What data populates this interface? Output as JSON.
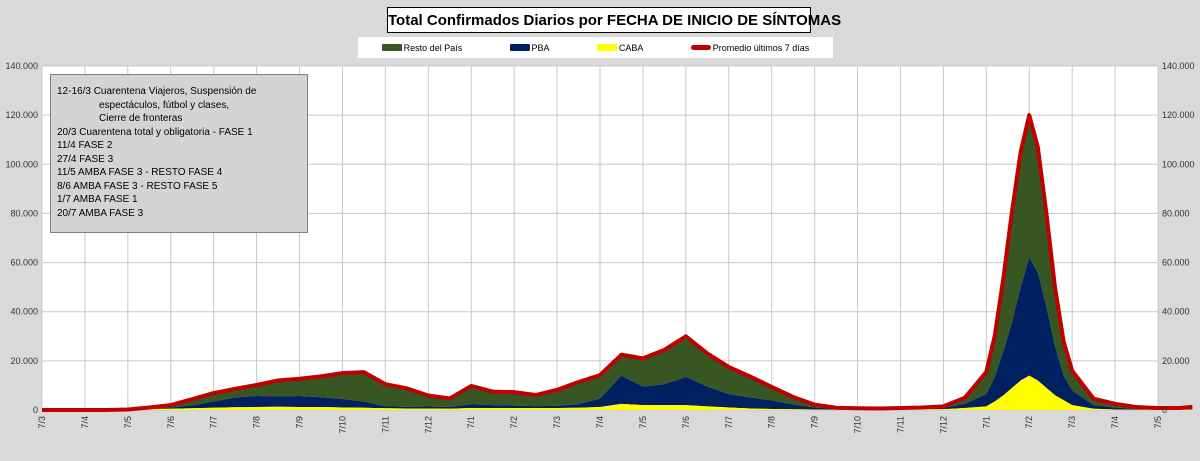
{
  "chart_data": {
    "type": "area",
    "title": "Total  Confirmados  Diarios  por FECHA DE INICIO DE SÍNTOMAS",
    "xlabel": "",
    "ylabel": "",
    "ylim": [
      0,
      140000
    ],
    "yticks": [
      "0",
      "20.000",
      "40.000",
      "60.000",
      "80.000",
      "100.000",
      "120.000",
      "140.000"
    ],
    "ytick_values": [
      0,
      20000,
      40000,
      60000,
      80000,
      100000,
      120000,
      140000
    ],
    "grid": true,
    "legend_position": "top-center",
    "x_tick_labels": [
      "7/3",
      "7/4",
      "7/5",
      "7/6",
      "7/7",
      "7/8",
      "7/9",
      "7/10",
      "7/11",
      "7/12",
      "7/1",
      "7/2",
      "7/3",
      "7/4",
      "7/5",
      "7/6",
      "7/7",
      "7/8",
      "7/9",
      "7/10",
      "7/11",
      "7/12",
      "7/1",
      "7/2",
      "7/3",
      "7/4",
      "7/5"
    ],
    "x": [
      0,
      0.5,
      1,
      1.5,
      2,
      2.5,
      3,
      3.5,
      4,
      4.5,
      5,
      5.5,
      6,
      6.5,
      7,
      7.5,
      8,
      8.5,
      9,
      9.5,
      10,
      10.5,
      11,
      11.5,
      12,
      12.5,
      13,
      13.5,
      14,
      14.5,
      15,
      15.5,
      16,
      16.5,
      17,
      17.5,
      18,
      18.5,
      19,
      19.5,
      20,
      20.5,
      21,
      21.5,
      22,
      22.2,
      22.4,
      22.6,
      22.8,
      23,
      23.2,
      23.4,
      23.6,
      23.8,
      24,
      24.5,
      25,
      25.5,
      26,
      26.5,
      26.8
    ],
    "series": [
      {
        "name": "Resto del País",
        "color": "#375623",
        "values": [
          0,
          0,
          0,
          0,
          100,
          400,
          1000,
          2500,
          3500,
          3500,
          4500,
          6500,
          7000,
          8500,
          10500,
          12000,
          9000,
          7500,
          4500,
          3500,
          7500,
          5500,
          5500,
          4500,
          6500,
          9000,
          9500,
          8500,
          11500,
          14000,
          16500,
          13500,
          11000,
          8500,
          5500,
          3000,
          1200,
          500,
          400,
          300,
          400,
          400,
          600,
          2500,
          9000,
          17000,
          30000,
          45000,
          55000,
          58000,
          51000,
          38000,
          24000,
          14000,
          8000,
          2600,
          1500,
          800,
          500,
          500,
          1000
        ]
      },
      {
        "name": "PBA",
        "color": "#002060",
        "values": [
          0,
          0,
          0,
          0,
          0,
          200,
          500,
          1200,
          2500,
          4000,
          4500,
          4200,
          4500,
          4000,
          3500,
          2500,
          800,
          700,
          800,
          700,
          1500,
          1200,
          1000,
          800,
          900,
          1500,
          3500,
          11500,
          7500,
          8500,
          11500,
          8000,
          5500,
          4500,
          3500,
          2000,
          800,
          300,
          200,
          200,
          200,
          300,
          600,
          1700,
          5000,
          10000,
          18000,
          27000,
          38000,
          48000,
          44000,
          33000,
          20000,
          10000,
          6000,
          1500,
          800,
          300,
          200,
          200,
          200
        ]
      },
      {
        "name": "CABA",
        "color": "#ffff00",
        "values": [
          0,
          0,
          0,
          0,
          100,
          400,
          500,
          700,
          900,
          1100,
          1200,
          1300,
          1200,
          1200,
          1000,
          900,
          700,
          600,
          600,
          500,
          800,
          800,
          800,
          800,
          800,
          900,
          1200,
          2500,
          2000,
          2000,
          2000,
          1500,
          1000,
          600,
          400,
          300,
          200,
          100,
          100,
          100,
          200,
          300,
          300,
          800,
          1500,
          3500,
          6000,
          9000,
          12000,
          14000,
          12000,
          9000,
          6000,
          4000,
          2000,
          500,
          200,
          100,
          100,
          100,
          100
        ]
      },
      {
        "name": "Promedio últimos 7 días",
        "color": "#c00000",
        "kind": "line",
        "values": "stacked-total"
      }
    ]
  },
  "annotations": [
    {
      "text": "12-16/3  Cuarentena Viajeros, Suspensión de",
      "indent": false
    },
    {
      "text": "espectáculos, fútbol y clases,",
      "indent": true
    },
    {
      "text": "Cierre de fronteras",
      "indent": true
    },
    {
      "text": "20/3  Cuarentena total y obligatoria - FASE 1",
      "indent": false
    },
    {
      "text": "11/4  FASE 2",
      "indent": false
    },
    {
      "text": "27/4  FASE 3",
      "indent": false
    },
    {
      "text": "11/5  AMBA FASE 3 - RESTO FASE 4",
      "indent": false
    },
    {
      "text": "8/6  AMBA FASE 3 - RESTO FASE 5",
      "indent": false
    },
    {
      "text": "1/7  AMBA FASE 1",
      "indent": false
    },
    {
      "text": "20/7  AMBA FASE 3",
      "indent": false
    }
  ]
}
